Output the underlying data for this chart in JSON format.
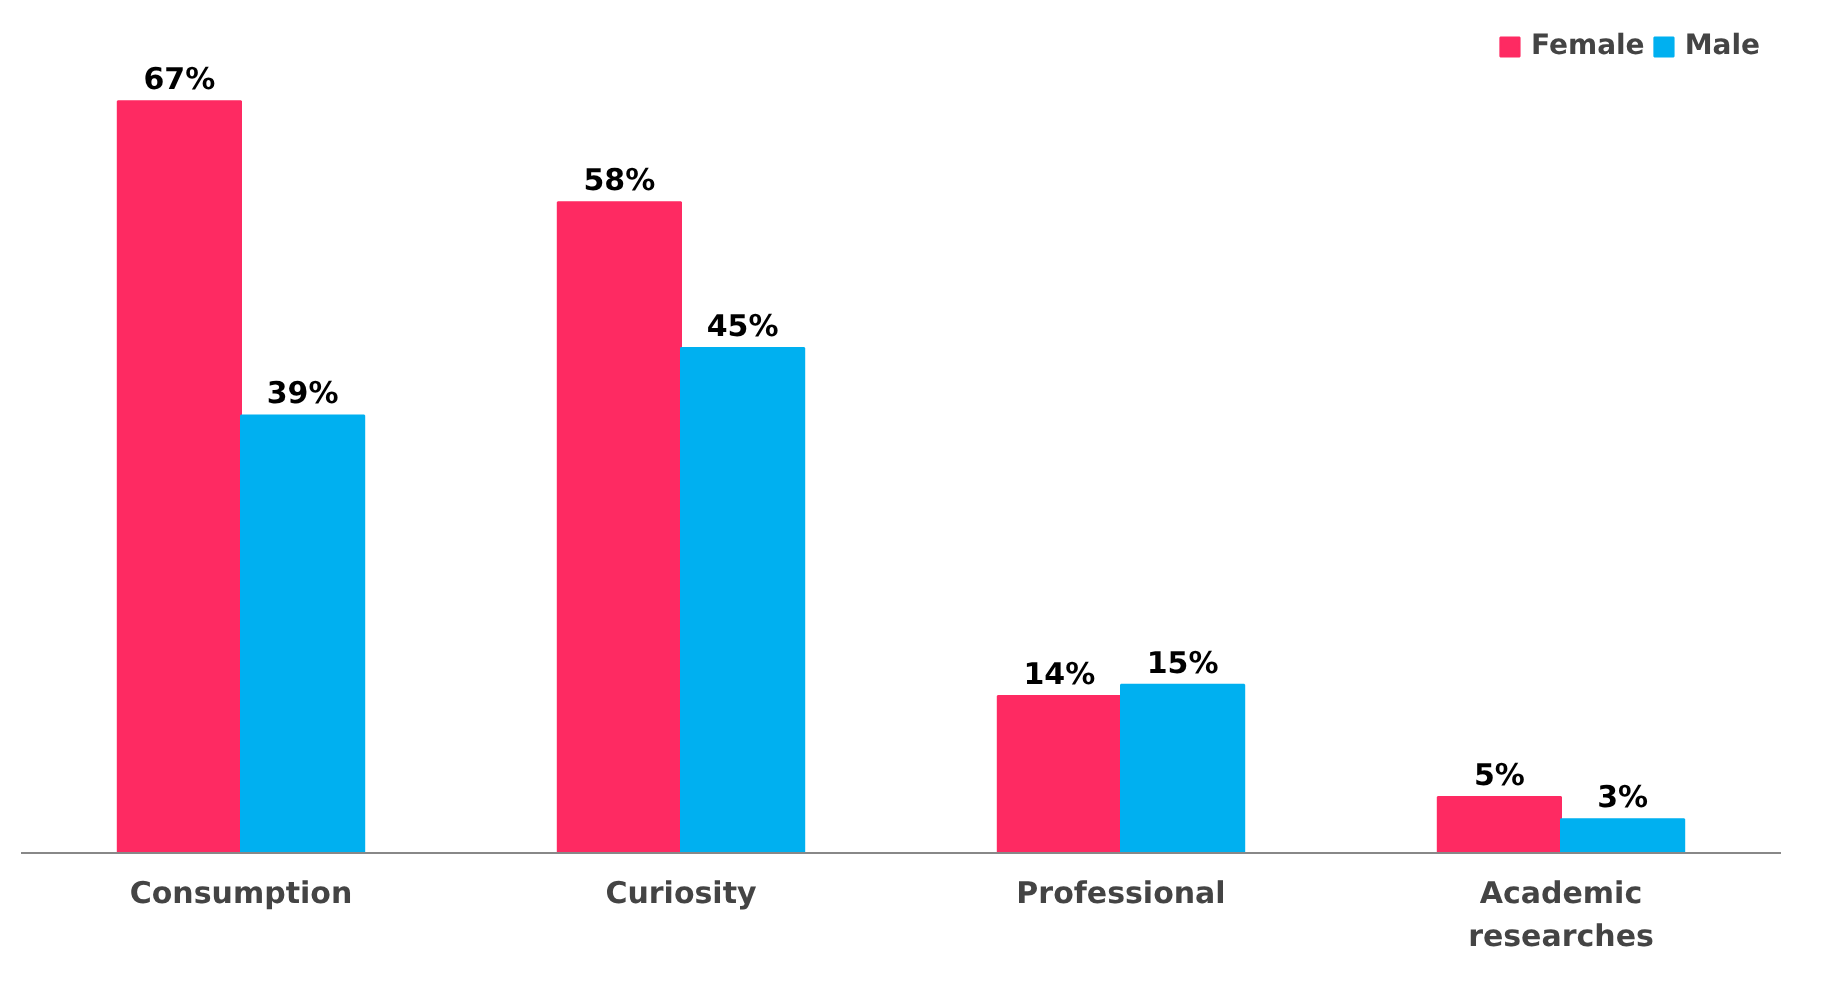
{
  "chart_data": {
    "type": "bar",
    "categories": [
      "Consumption",
      "Curiosity",
      "Professional",
      "Academic researches"
    ],
    "series": [
      {
        "name": "Female",
        "color": "#fe2a62",
        "values": [
          67,
          58,
          14,
          5
        ],
        "value_labels": [
          "67%",
          "58%",
          "14%",
          "5%"
        ]
      },
      {
        "name": "Male",
        "color": "#00b0f0",
        "values": [
          39,
          45,
          15,
          3
        ],
        "value_labels": [
          "39%",
          "45%",
          "15%",
          "3%"
        ]
      }
    ],
    "legend": "top right",
    "grid": false
  }
}
